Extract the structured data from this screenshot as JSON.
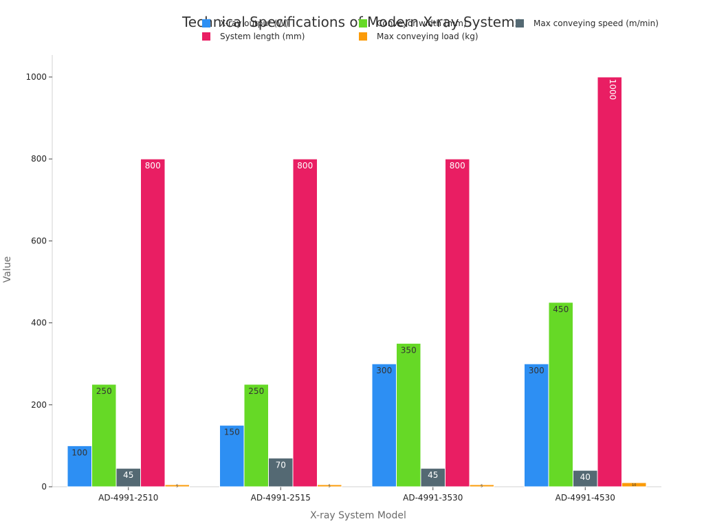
{
  "chart_data": {
    "type": "bar",
    "title": "Technical Specifications of Modern X-ray Systems",
    "xlabel": "X-ray System Model",
    "ylabel": "Value",
    "ylim": [
      0,
      1050
    ],
    "yticks": [
      0,
      200,
      400,
      600,
      800,
      1000
    ],
    "categories": [
      "AD-4991-2510",
      "AD-4991-2515",
      "AD-4991-3530",
      "AD-4991-4530"
    ],
    "series": [
      {
        "name": "X-ray output (W)",
        "color": "#2d8ff3",
        "values": [
          100,
          150,
          300,
          300
        ]
      },
      {
        "name": "Conveyor width (mm)",
        "color": "#66d926",
        "values": [
          250,
          250,
          350,
          450
        ]
      },
      {
        "name": "Max conveying speed (m/min)",
        "color": "#546973",
        "values": [
          45,
          70,
          45,
          40
        ]
      },
      {
        "name": "System length (mm)",
        "color": "#e91e63",
        "values": [
          800,
          800,
          800,
          1000
        ]
      },
      {
        "name": "Max conveying load (kg)",
        "color": "#fb9b09",
        "values": [
          5,
          5,
          5,
          10
        ]
      }
    ],
    "legend_position": "top"
  }
}
